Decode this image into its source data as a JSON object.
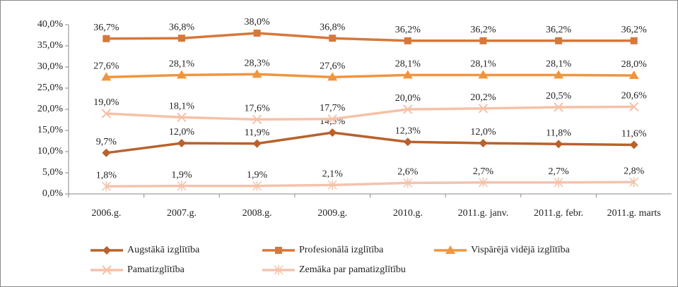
{
  "chart_data": {
    "type": "line",
    "categories": [
      "2006.g.",
      "2007.g.",
      "2008.g.",
      "2009.g.",
      "2010.g.",
      "2011.g. janv.",
      "2011.g. febr.",
      "2011.g. marts"
    ],
    "ylim": [
      0,
      40
    ],
    "yticks": [
      {
        "value": 0,
        "label": "0,0%"
      },
      {
        "value": 5,
        "label": "5,0%"
      },
      {
        "value": 10,
        "label": "10,0%"
      },
      {
        "value": 15,
        "label": "15,0%"
      },
      {
        "value": 20,
        "label": "20,0%"
      },
      {
        "value": 25,
        "label": "25,0%"
      },
      {
        "value": 30,
        "label": "30,0%"
      },
      {
        "value": 35,
        "label": "35,0%"
      },
      {
        "value": 40,
        "label": "40,0%"
      }
    ],
    "grid": false,
    "legend": "bottom",
    "series": [
      {
        "name": "Augstākā izglītība",
        "color": "#b8622c",
        "marker": "diamond",
        "values": [
          9.7,
          12.0,
          11.9,
          14.5,
          12.3,
          12.0,
          11.8,
          11.6
        ],
        "value_labels": [
          "9,7%",
          "12,0%",
          "11,9%",
          "14,5%",
          "12,3%",
          "12,0%",
          "11,8%",
          "11,6%"
        ]
      },
      {
        "name": "Profesionālā izglītība",
        "color": "#d7773a",
        "marker": "square",
        "values": [
          36.7,
          36.8,
          38.0,
          36.8,
          36.2,
          36.2,
          36.2,
          36.2
        ],
        "value_labels": [
          "36,7%",
          "36,8%",
          "38,0%",
          "36,8%",
          "36,2%",
          "36,2%",
          "36,2%",
          "36,2%"
        ]
      },
      {
        "name": "Vispārējā vidējā izglītība",
        "color": "#f0953e",
        "marker": "triangle",
        "values": [
          27.6,
          28.1,
          28.3,
          27.6,
          28.1,
          28.1,
          28.1,
          28.0
        ],
        "value_labels": [
          "27,6%",
          "28,1%",
          "28,3%",
          "27,6%",
          "28,1%",
          "28,1%",
          "28,1%",
          "28,0%"
        ]
      },
      {
        "name": "Pamatizglītība",
        "color": "#f6c1a6",
        "marker": "x",
        "values": [
          19.0,
          18.1,
          17.6,
          17.7,
          20.0,
          20.2,
          20.5,
          20.6
        ],
        "value_labels": [
          "19,0%",
          "18,1%",
          "17,6%",
          "17,7%",
          "20,0%",
          "20,2%",
          "20,5%",
          "20,6%"
        ]
      },
      {
        "name": "Zemāka par pamatizglītību",
        "color": "#f3c3ad",
        "marker": "star",
        "values": [
          1.8,
          1.9,
          1.9,
          2.1,
          2.6,
          2.7,
          2.7,
          2.8
        ],
        "value_labels": [
          "1,8%",
          "1,9%",
          "1,9%",
          "2,1%",
          "2,6%",
          "2,7%",
          "2,7%",
          "2,8%"
        ]
      }
    ]
  }
}
